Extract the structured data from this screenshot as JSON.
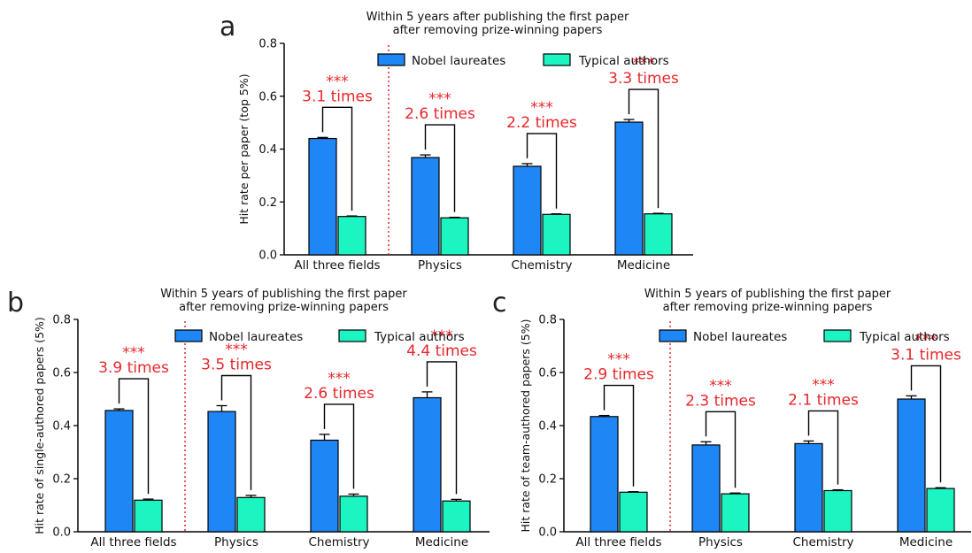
{
  "colors": {
    "nobel": "#1f87f5",
    "typical": "#1cf5c2",
    "annotation": "#e8262b",
    "divider": "#e8262b",
    "axis": "#000000"
  },
  "chart_data": [
    {
      "panel": "a",
      "type": "bar",
      "title_line1": "Within 5 years after publishing the first paper",
      "title_line2": "after removing prize-winning papers",
      "ylabel": "Hit rate per paper (top 5%)",
      "xlabel": "",
      "ylim": [
        0,
        0.8
      ],
      "yticks": [
        "0.0",
        "0.2",
        "0.4",
        "0.6",
        "0.8"
      ],
      "categories": [
        "All three fields",
        "Physics",
        "Chemistry",
        "Medicine"
      ],
      "series": [
        {
          "name": "Nobel laureates",
          "values": [
            0.44,
            0.368,
            0.335,
            0.502
          ],
          "errors": [
            0.004,
            0.01,
            0.01,
            0.01
          ]
        },
        {
          "name": "Typical authors",
          "values": [
            0.145,
            0.14,
            0.153,
            0.155
          ],
          "errors": [
            0.002,
            0.002,
            0.002,
            0.002
          ]
        }
      ],
      "significance": [
        "***",
        "***",
        "***",
        "***"
      ],
      "ratios": [
        "3.1 times",
        "2.6 times",
        "2.2 times",
        "3.3 times"
      ],
      "legend_position": "top-right"
    },
    {
      "panel": "b",
      "type": "bar",
      "title_line1": "Within 5 years of publishing the first paper",
      "title_line2": "after removing prize-winning papers",
      "ylabel": "Hit rate of single-authored papers (5%)",
      "xlabel": "",
      "ylim": [
        0,
        0.8
      ],
      "yticks": [
        "0.0",
        "0.2",
        "0.4",
        "0.6",
        "0.8"
      ],
      "categories": [
        "All three fields",
        "Physics",
        "Chemistry",
        "Medicine"
      ],
      "series": [
        {
          "name": "Nobel laureates",
          "values": [
            0.457,
            0.453,
            0.345,
            0.505
          ],
          "errors": [
            0.006,
            0.022,
            0.022,
            0.022
          ]
        },
        {
          "name": "Typical authors",
          "values": [
            0.119,
            0.129,
            0.134,
            0.116
          ],
          "errors": [
            0.004,
            0.008,
            0.008,
            0.006
          ]
        }
      ],
      "significance": [
        "***",
        "***",
        "***",
        "***"
      ],
      "ratios": [
        "3.9 times",
        "3.5 times",
        "2.6 times",
        "4.4 times"
      ],
      "legend_position": "top-right"
    },
    {
      "panel": "c",
      "type": "bar",
      "title_line1": "Within 5 years of publishing the first paper",
      "title_line2": "after removing prize-winning papers",
      "ylabel": "Hit rate of team-authored papers (5%)",
      "xlabel": "",
      "ylim": [
        0,
        0.8
      ],
      "yticks": [
        "0.0",
        "0.2",
        "0.4",
        "0.6",
        "0.8"
      ],
      "categories": [
        "All three fields",
        "Physics",
        "Chemistry",
        "Medicine"
      ],
      "series": [
        {
          "name": "Nobel laureates",
          "values": [
            0.434,
            0.327,
            0.332,
            0.5
          ],
          "errors": [
            0.004,
            0.012,
            0.01,
            0.012
          ]
        },
        {
          "name": "Typical authors",
          "values": [
            0.149,
            0.143,
            0.155,
            0.163
          ],
          "errors": [
            0.002,
            0.003,
            0.003,
            0.003
          ]
        }
      ],
      "significance": [
        "***",
        "***",
        "***",
        "***"
      ],
      "ratios": [
        "2.9 times",
        "2.3 times",
        "2.1 times",
        "3.1 times"
      ],
      "legend_position": "top-right"
    }
  ]
}
